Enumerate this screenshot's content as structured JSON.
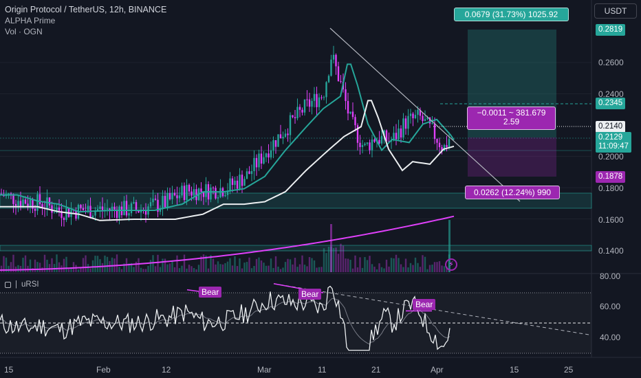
{
  "legend": {
    "title": "Origin Protocol / TetherUS, 12h, BINANCE",
    "indicator": "ALPHA Prime",
    "volume": "Vol · OGN"
  },
  "currency": "USDT",
  "position": {
    "target_label": "0.0679 (31.73%) 1025.92",
    "stop_label": "0.0262 (12.24%) 990",
    "center_line1": "−0.0011 ~ 381.679",
    "center_line2": "2.59"
  },
  "price_axis": {
    "ticks": [
      "0.2600",
      "0.2400",
      "0.2000",
      "0.1800",
      "0.1600",
      "0.1400"
    ],
    "tag_target": "0.2819",
    "tag_stop_dashed": "0.2345",
    "tag_entry": "0.2140",
    "tag_current": "0.2129",
    "tag_countdown": "11:09:47",
    "tag_stop": "0.1878"
  },
  "rsi": {
    "label": "uRSI",
    "ticks": [
      "80.00",
      "60.00",
      "40.00"
    ],
    "bear_labels": [
      "Bear",
      "Bear",
      "Bear"
    ]
  },
  "time_axis": [
    "15",
    "Feb",
    "12",
    "Mar",
    "11",
    "21",
    "Apr",
    "15",
    "25"
  ],
  "colors": {
    "background": "#131722",
    "bull": "#26a69a",
    "bear": "#ef5350",
    "magenta": "#e040fb",
    "violet": "#9c27b0",
    "ma_fast": "#26a69a",
    "ma_slow": "#eceff1",
    "ma_long": "#e040fb"
  }
}
